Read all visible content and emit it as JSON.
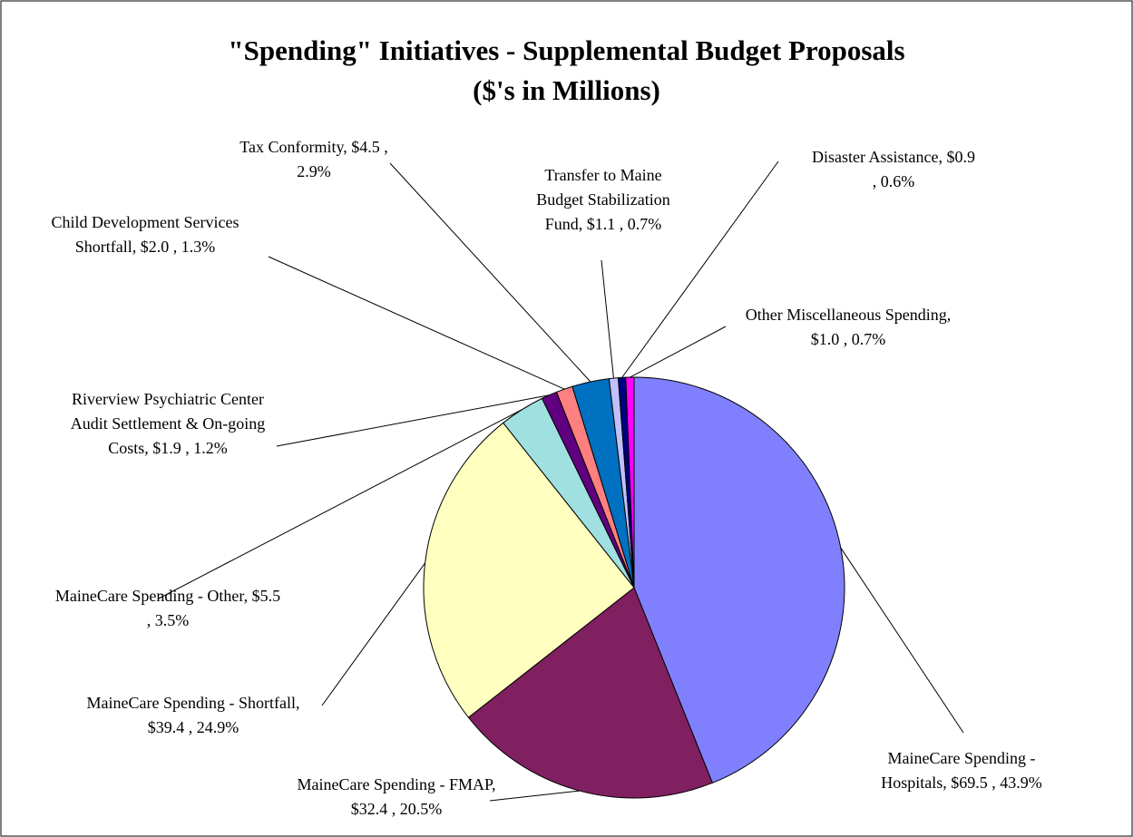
{
  "chart_data": {
    "type": "pie",
    "title": "\"Spending\" Initiatives - Supplemental Budget Proposals",
    "subtitle": "($'s in Millions)",
    "labels": [
      "MaineCare Spending - Hospitals, $69.5 , 43.9%",
      "MaineCare Spending - FMAP, $32.4 , 20.5%",
      "MaineCare Spending - Shortfall, $39.4 , 24.9%",
      "MaineCare Spending - Other, $5.5 , 3.5%",
      "Riverview Psychiatric Center Audit Settlement & On-going Costs, $1.9 , 1.2%",
      "Child Development Services Shortfall, $2.0 , 1.3%",
      "Tax Conformity, $4.5 , 2.9%",
      "Transfer to Maine Budget Stabilization Fund, $1.1 , 0.7%",
      "Disaster Assistance, $0.9 , 0.6%",
      "Other Miscellaneous Spending, $1.0 , 0.7%"
    ],
    "values": [
      69.5,
      32.4,
      39.4,
      5.5,
      1.9,
      2.0,
      4.5,
      1.1,
      0.9,
      1.0
    ],
    "colors": [
      "#8080FF",
      "#802060",
      "#FFFFC0",
      "#A0E0E0",
      "#600080",
      "#FF8080",
      "#0070C0",
      "#C0C0FF",
      "#000080",
      "#FF00FF"
    ]
  }
}
